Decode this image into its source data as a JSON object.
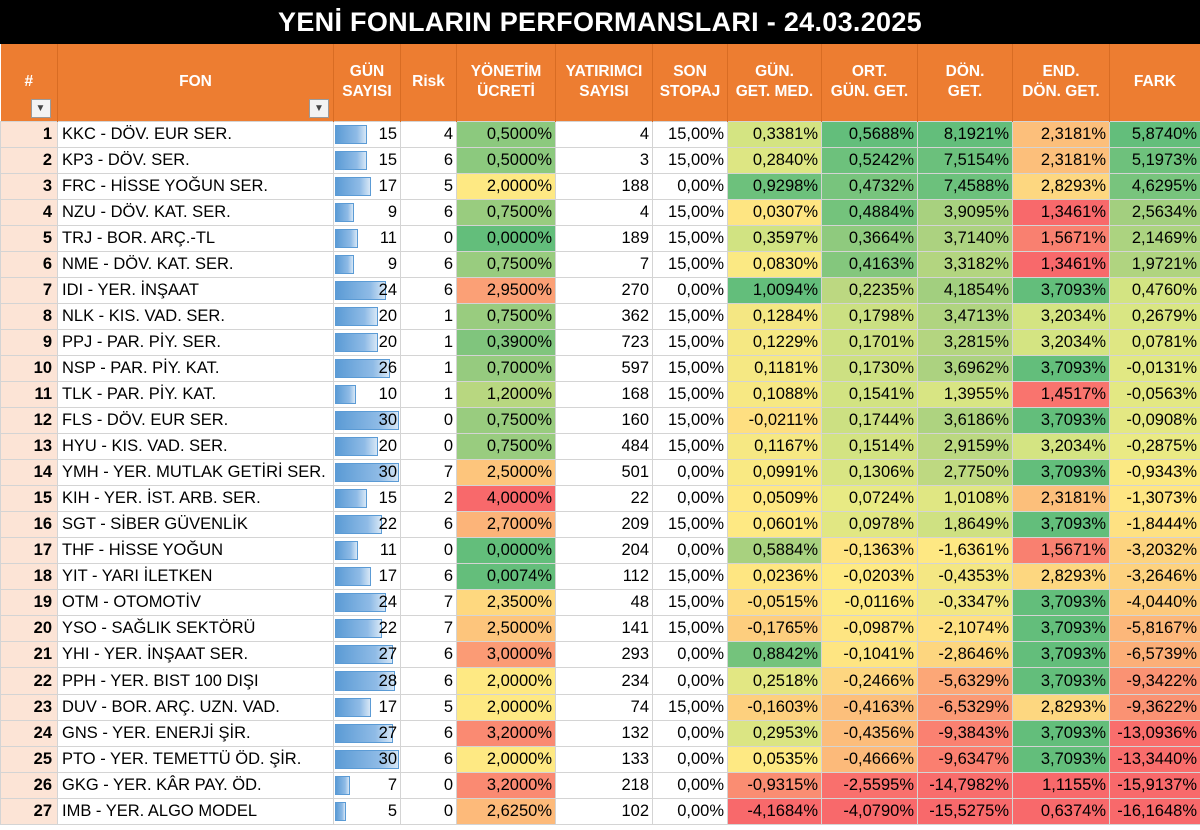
{
  "title": "YENİ FONLARIN PERFORMANSLARI - 24.03.2025",
  "headers": {
    "idx": "#",
    "fon": "FON",
    "gun": [
      "GÜN",
      "SAYISI"
    ],
    "risk": "Risk",
    "yon": [
      "YÖNETİM",
      "ÜCRETİ"
    ],
    "yat": [
      "YATIRIMCI",
      "SAYISI"
    ],
    "son": [
      "SON",
      "STOPAJ"
    ],
    "gmed": [
      "GÜN.",
      "GET. MED."
    ],
    "ort": [
      "ORT.",
      "GÜN. GET."
    ],
    "don": [
      "DÖN.",
      "GET."
    ],
    "end": [
      "END.",
      "DÖN. GET."
    ],
    "fark": "FARK"
  },
  "filter_icon": "dropdown-arrow",
  "rows": [
    {
      "idx": "1",
      "fon": "KKC - DÖV. EUR SER.",
      "gun": "15",
      "gun_val": 15,
      "risk": "4",
      "yon": "0,5000%",
      "yon_c": "#8CC97E",
      "yat": "4",
      "son": "15,00%",
      "gmed": "0,3381%",
      "gmed_c": "#D4E482",
      "ort": "0,5688%",
      "ort_c": "#63BE7B",
      "don": "8,1921%",
      "don_c": "#63BE7B",
      "end": "2,3181%",
      "end_c": "#FCBF7B",
      "fark": "5,8740%",
      "fark_c": "#63BE7B"
    },
    {
      "idx": "2",
      "fon": "KP3 - DÖV. SER.",
      "gun": "15",
      "gun_val": 15,
      "risk": "6",
      "yon": "0,5000%",
      "yon_c": "#8CC97E",
      "yat": "3",
      "son": "15,00%",
      "gmed": "0,2840%",
      "gmed_c": "#DDE683",
      "ort": "0,5242%",
      "ort_c": "#6DC17C",
      "don": "7,5154%",
      "don_c": "#6BC07C",
      "end": "2,3181%",
      "end_c": "#FCBF7B",
      "fark": "5,1973%",
      "fark_c": "#6EC17C"
    },
    {
      "idx": "3",
      "fon": "FRC - HİSSE YOĞUN SER.",
      "gun": "17",
      "gun_val": 17,
      "risk": "5",
      "yon": "2,0000%",
      "yon_c": "#FEE983",
      "yat": "188",
      "son": "0,00%",
      "gmed": "0,9298%",
      "gmed_c": "#6DC17C",
      "ort": "0,4732%",
      "ort_c": "#78C47D",
      "don": "7,4588%",
      "don_c": "#6CC17C",
      "end": "2,8293%",
      "end_c": "#FDD780",
      "fark": "4,6295%",
      "fark_c": "#78C47D"
    },
    {
      "idx": "4",
      "fon": "NZU - DÖV. KAT. SER.",
      "gun": "9",
      "gun_val": 9,
      "risk": "6",
      "yon": "0,7500%",
      "yon_c": "#99CC7F",
      "yat": "4",
      "son": "15,00%",
      "gmed": "0,0307%",
      "gmed_c": "#FEE582",
      "ort": "0,4884%",
      "ort_c": "#74C37C",
      "don": "3,9095%",
      "don_c": "#A8D17F",
      "end": "1,3461%",
      "end_c": "#F8696B",
      "fark": "2,5634%",
      "fark_c": "#A3CF7F"
    },
    {
      "idx": "5",
      "fon": "TRJ - BOR. ARÇ.-TL",
      "gun": "11",
      "gun_val": 11,
      "risk": "0",
      "yon": "0,0000%",
      "yon_c": "#63BE7B",
      "yat": "189",
      "son": "15,00%",
      "gmed": "0,3597%",
      "gmed_c": "#D1E382",
      "ort": "0,3664%",
      "ort_c": "#8FCA7E",
      "don": "3,7140%",
      "don_c": "#ACD280",
      "end": "1,5671%",
      "end_c": "#F98070",
      "fark": "2,1469%",
      "fark_c": "#ACD380"
    },
    {
      "idx": "6",
      "fon": "NME - DÖV. KAT. SER.",
      "gun": "9",
      "gun_val": 9,
      "risk": "6",
      "yon": "0,7500%",
      "yon_c": "#99CC7F",
      "yat": "7",
      "son": "15,00%",
      "gmed": "0,0830%",
      "gmed_c": "#FBE983",
      "ort": "0,4163%",
      "ort_c": "#84C77D",
      "don": "3,3182%",
      "don_c": "#B3D580",
      "end": "1,3461%",
      "end_c": "#F8696B",
      "fark": "1,9721%",
      "fark_c": "#B0D480"
    },
    {
      "idx": "7",
      "fon": "IDI - YER. İNŞAAT",
      "gun": "24",
      "gun_val": 24,
      "risk": "6",
      "yon": "2,9500%",
      "yon_c": "#FBA076",
      "yat": "270",
      "son": "0,00%",
      "gmed": "1,0094%",
      "gmed_c": "#63BE7B",
      "ort": "0,2235%",
      "ort_c": "#BCD881",
      "don": "4,1854%",
      "don_c": "#A2CF7F",
      "end": "3,7093%",
      "end_c": "#63BE7B",
      "fark": "0,4760%",
      "fark_c": "#D3E482"
    },
    {
      "idx": "8",
      "fon": "NLK - KIS. VAD. SER.",
      "gun": "20",
      "gun_val": 20,
      "risk": "1",
      "yon": "0,7500%",
      "yon_c": "#99CC7F",
      "yat": "362",
      "son": "15,00%",
      "gmed": "0,1284%",
      "gmed_c": "#F4E783",
      "ort": "0,1798%",
      "ort_c": "#CBE082",
      "don": "3,4713%",
      "don_c": "#B0D480",
      "end": "3,2034%",
      "end_c": "#D4E482",
      "fark": "0,2679%",
      "fark_c": "#D9E683"
    },
    {
      "idx": "9",
      "fon": "PPJ - PAR. PİY. SER.",
      "gun": "20",
      "gun_val": 20,
      "risk": "1",
      "yon": "0,3900%",
      "yon_c": "#80C57D",
      "yat": "723",
      "son": "15,00%",
      "gmed": "0,1229%",
      "gmed_c": "#F5E883",
      "ort": "0,1701%",
      "ort_c": "#CEE182",
      "don": "3,2815%",
      "don_c": "#B4D580",
      "end": "3,2034%",
      "end_c": "#D4E482",
      "fark": "0,0781%",
      "fark_c": "#DFE783"
    },
    {
      "idx": "10",
      "fon": "NSP - PAR. PİY. KAT.",
      "gun": "26",
      "gun_val": 26,
      "risk": "1",
      "yon": "0,7000%",
      "yon_c": "#96CB7F",
      "yat": "597",
      "son": "15,00%",
      "gmed": "0,1181%",
      "gmed_c": "#F5E883",
      "ort": "0,1730%",
      "ort_c": "#CDE082",
      "don": "3,6962%",
      "don_c": "#ACD280",
      "end": "3,7093%",
      "end_c": "#63BE7B",
      "fark": "-0,0131%",
      "fark_c": "#E1E883"
    },
    {
      "idx": "11",
      "fon": "TLK - PAR. PİY. KAT.",
      "gun": "10",
      "gun_val": 10,
      "risk": "1",
      "yon": "1,2000%",
      "yon_c": "#B8D780",
      "yat": "168",
      "son": "15,00%",
      "gmed": "0,1088%",
      "gmed_c": "#F7E883",
      "ort": "0,1541%",
      "ort_c": "#D2E382",
      "don": "1,3955%",
      "don_c": "#D8E583",
      "end": "1,4517%",
      "end_c": "#F9746E",
      "fark": "-0,0563%",
      "fark_c": "#E3E883"
    },
    {
      "idx": "12",
      "fon": "FLS - DÖV. EUR SER.",
      "gun": "30",
      "gun_val": 30,
      "risk": "0",
      "yon": "0,7500%",
      "yon_c": "#99CC7F",
      "yat": "160",
      "son": "15,00%",
      "gmed": "-0,0211%",
      "gmed_c": "#FEDF81",
      "ort": "0,1744%",
      "ort_c": "#CCE082",
      "don": "3,6186%",
      "don_c": "#AED380",
      "end": "3,7093%",
      "end_c": "#63BE7B",
      "fark": "-0,0908%",
      "fark_c": "#E4E883"
    },
    {
      "idx": "13",
      "fon": "HYU - KIS. VAD. SER.",
      "gun": "20",
      "gun_val": 20,
      "risk": "0",
      "yon": "0,7500%",
      "yon_c": "#99CC7F",
      "yat": "484",
      "son": "15,00%",
      "gmed": "0,1167%",
      "gmed_c": "#F6E883",
      "ort": "0,1514%",
      "ort_c": "#D3E382",
      "don": "2,9159%",
      "don_c": "#BBD881",
      "end": "3,2034%",
      "end_c": "#D4E482",
      "fark": "-0,2875%",
      "fark_c": "#EAEA84"
    },
    {
      "idx": "14",
      "fon": "YMH - YER. MUTLAK GETİRİ SER.",
      "gun": "30",
      "gun_val": 30,
      "risk": "7",
      "yon": "2,5000%",
      "yon_c": "#FDC57C",
      "yat": "501",
      "son": "0,00%",
      "gmed": "0,0991%",
      "gmed_c": "#F9E983",
      "ort": "0,1306%",
      "ort_c": "#D9E583",
      "don": "2,7750%",
      "don_c": "#BED981",
      "end": "3,7093%",
      "end_c": "#63BE7B",
      "fark": "-0,9343%",
      "fark_c": "#FBE983"
    },
    {
      "idx": "15",
      "fon": "KIH - YER. İST. ARB. SER.",
      "gun": "15",
      "gun_val": 15,
      "risk": "2",
      "yon": "4,0000%",
      "yon_c": "#F8696B",
      "yat": "22",
      "son": "0,00%",
      "gmed": "0,0509%",
      "gmed_c": "#FEE883",
      "ort": "0,0724%",
      "ort_c": "#E8EA84",
      "don": "1,0108%",
      "don_c": "#E0E783",
      "end": "2,3181%",
      "end_c": "#FCBF7B",
      "fark": "-1,3073%",
      "fark_c": "#FEE683"
    },
    {
      "idx": "16",
      "fon": "SGT - SİBER GÜVENLİK",
      "gun": "22",
      "gun_val": 22,
      "risk": "6",
      "yon": "2,7000%",
      "yon_c": "#FCB479",
      "yat": "209",
      "son": "15,00%",
      "gmed": "0,0601%",
      "gmed_c": "#FEE983",
      "ort": "0,0978%",
      "ort_c": "#E1E783",
      "don": "1,8649%",
      "don_c": "#CFE182",
      "end": "3,7093%",
      "end_c": "#63BE7B",
      "fark": "-1,8444%",
      "fark_c": "#FEE182"
    },
    {
      "idx": "17",
      "fon": "THF - HİSSE YOĞUN",
      "gun": "11",
      "gun_val": 11,
      "risk": "0",
      "yon": "0,0000%",
      "yon_c": "#63BE7B",
      "yat": "204",
      "son": "0,00%",
      "gmed": "0,5884%",
      "gmed_c": "#A8D17F",
      "ort": "-0,1363%",
      "ort_c": "#FEE482",
      "don": "-1,6361%",
      "don_c": "#FEE883",
      "end": "1,5671%",
      "end_c": "#F98070",
      "fark": "-3,2032%",
      "fark_c": "#FDD37F"
    },
    {
      "idx": "18",
      "fon": "YIT - YARI İLETKEN",
      "gun": "17",
      "gun_val": 17,
      "risk": "6",
      "yon": "0,0074%",
      "yon_c": "#64BE7B",
      "yat": "112",
      "son": "15,00%",
      "gmed": "0,0236%",
      "gmed_c": "#FEE682",
      "ort": "-0,0203%",
      "ort_c": "#FEEA83",
      "don": "-0,4353%",
      "don_c": "#F4E783",
      "end": "2,8293%",
      "end_c": "#FDD780",
      "fark": "-3,2646%",
      "fark_c": "#FDD27F"
    },
    {
      "idx": "19",
      "fon": "OTM - OTOMOTİV",
      "gun": "24",
      "gun_val": 24,
      "risk": "7",
      "yon": "2,3500%",
      "yon_c": "#FED87F",
      "yat": "48",
      "son": "15,00%",
      "gmed": "-0,0515%",
      "gmed_c": "#FEDC81",
      "ort": "-0,0116%",
      "ort_c": "#FDEA83",
      "don": "-0,3347%",
      "don_c": "#F2E783",
      "end": "3,7093%",
      "end_c": "#63BE7B",
      "fark": "-4,0440%",
      "fark_c": "#FDCA7D"
    },
    {
      "idx": "20",
      "fon": "YSO - SAĞLIK SEKTÖRÜ",
      "gun": "22",
      "gun_val": 22,
      "risk": "7",
      "yon": "2,5000%",
      "yon_c": "#FDC57C",
      "yat": "141",
      "son": "15,00%",
      "gmed": "-0,1765%",
      "gmed_c": "#FDCE7E",
      "ort": "-0,0987%",
      "ort_c": "#FEE582",
      "don": "-2,1074%",
      "don_c": "#FEE182",
      "end": "3,7093%",
      "end_c": "#63BE7B",
      "fark": "-5,8167%",
      "fark_c": "#FCB77A"
    },
    {
      "idx": "21",
      "fon": "YHI - YER. İNŞAAT SER.",
      "gun": "27",
      "gun_val": 27,
      "risk": "6",
      "yon": "3,0000%",
      "yon_c": "#FB9B75",
      "yat": "293",
      "son": "0,00%",
      "gmed": "0,8842%",
      "gmed_c": "#74C37C",
      "ort": "-0,1041%",
      "ort_c": "#FEE582",
      "don": "-2,8646%",
      "don_c": "#FDD67F",
      "end": "3,7093%",
      "end_c": "#63BE7B",
      "fark": "-6,5739%",
      "fark_c": "#FCAF78"
    },
    {
      "idx": "22",
      "fon": "PPH - YER. BIST 100 DIŞI",
      "gun": "28",
      "gun_val": 28,
      "risk": "6",
      "yon": "2,0000%",
      "yon_c": "#FEE983",
      "yat": "234",
      "son": "0,00%",
      "gmed": "0,2518%",
      "gmed_c": "#E2E783",
      "ort": "-0,2466%",
      "ort_c": "#FDD680",
      "don": "-5,6329%",
      "don_c": "#FCA777",
      "end": "3,7093%",
      "end_c": "#63BE7B",
      "fark": "-9,3422%",
      "fark_c": "#FA9273"
    },
    {
      "idx": "23",
      "fon": "DUV - BOR. ARÇ. UZN. VAD.",
      "gun": "17",
      "gun_val": 17,
      "risk": "5",
      "yon": "2,0000%",
      "yon_c": "#FEE983",
      "yat": "74",
      "son": "15,00%",
      "gmed": "-0,1603%",
      "gmed_c": "#FDD07E",
      "ort": "-0,4163%",
      "ort_c": "#FCBF7B",
      "don": "-6,5329%",
      "don_c": "#FB9A75",
      "end": "2,8293%",
      "end_c": "#FDD780",
      "fark": "-9,3622%",
      "fark_c": "#FA9273"
    },
    {
      "idx": "24",
      "fon": "GNS - YER. ENERJİ ŞİR.",
      "gun": "27",
      "gun_val": 27,
      "risk": "6",
      "yon": "3,2000%",
      "yon_c": "#FA8A72",
      "yat": "132",
      "son": "0,00%",
      "gmed": "0,2953%",
      "gmed_c": "#DBE583",
      "ort": "-0,4356%",
      "ort_c": "#FCBD7B",
      "don": "-9,3843%",
      "don_c": "#FA8171",
      "end": "3,7093%",
      "end_c": "#63BE7B",
      "fark": "-13,0936%",
      "fark_c": "#F96E6C"
    },
    {
      "idx": "25",
      "fon": "PTO - YER. TEMETTÜ ÖD. ŞİR.",
      "gun": "30",
      "gun_val": 30,
      "risk": "6",
      "yon": "2,0000%",
      "yon_c": "#FEE983",
      "yat": "133",
      "son": "0,00%",
      "gmed": "0,0535%",
      "gmed_c": "#FEE983",
      "ort": "-0,4666%",
      "ort_c": "#FCBA7A",
      "don": "-9,6347%",
      "don_c": "#FA7F70",
      "end": "3,7093%",
      "end_c": "#63BE7B",
      "fark": "-13,3440%",
      "fark_c": "#F96D6C"
    },
    {
      "idx": "26",
      "fon": "GKG - YER. KÂR PAY. ÖD.",
      "gun": "7",
      "gun_val": 7,
      "risk": "0",
      "yon": "3,2000%",
      "yon_c": "#FA8A72",
      "yat": "218",
      "son": "0,00%",
      "gmed": "-0,9315%",
      "gmed_c": "#FA8D72",
      "ort": "-2,5595%",
      "ort_c": "#F9706D",
      "don": "-14,7982%",
      "don_c": "#F86D6C",
      "end": "1,1155%",
      "end_c": "#F8696B",
      "fark": "-15,9137%",
      "fark_c": "#F8696B"
    },
    {
      "idx": "27",
      "fon": "IMB - YER. ALGO MODEL",
      "gun": "5",
      "gun_val": 5,
      "risk": "0",
      "yon": "2,6250%",
      "yon_c": "#FDBA7A",
      "yat": "102",
      "son": "0,00%",
      "gmed": "-4,1684%",
      "gmed_c": "#F8696B",
      "ort": "-4,0790%",
      "ort_c": "#F8696B",
      "don": "-15,5275%",
      "don_c": "#F8696B",
      "end": "0,6374%",
      "end_c": "#F8696B",
      "fark": "-16,1648%",
      "fark_c": "#F8696B"
    }
  ],
  "gun_max": 30
}
